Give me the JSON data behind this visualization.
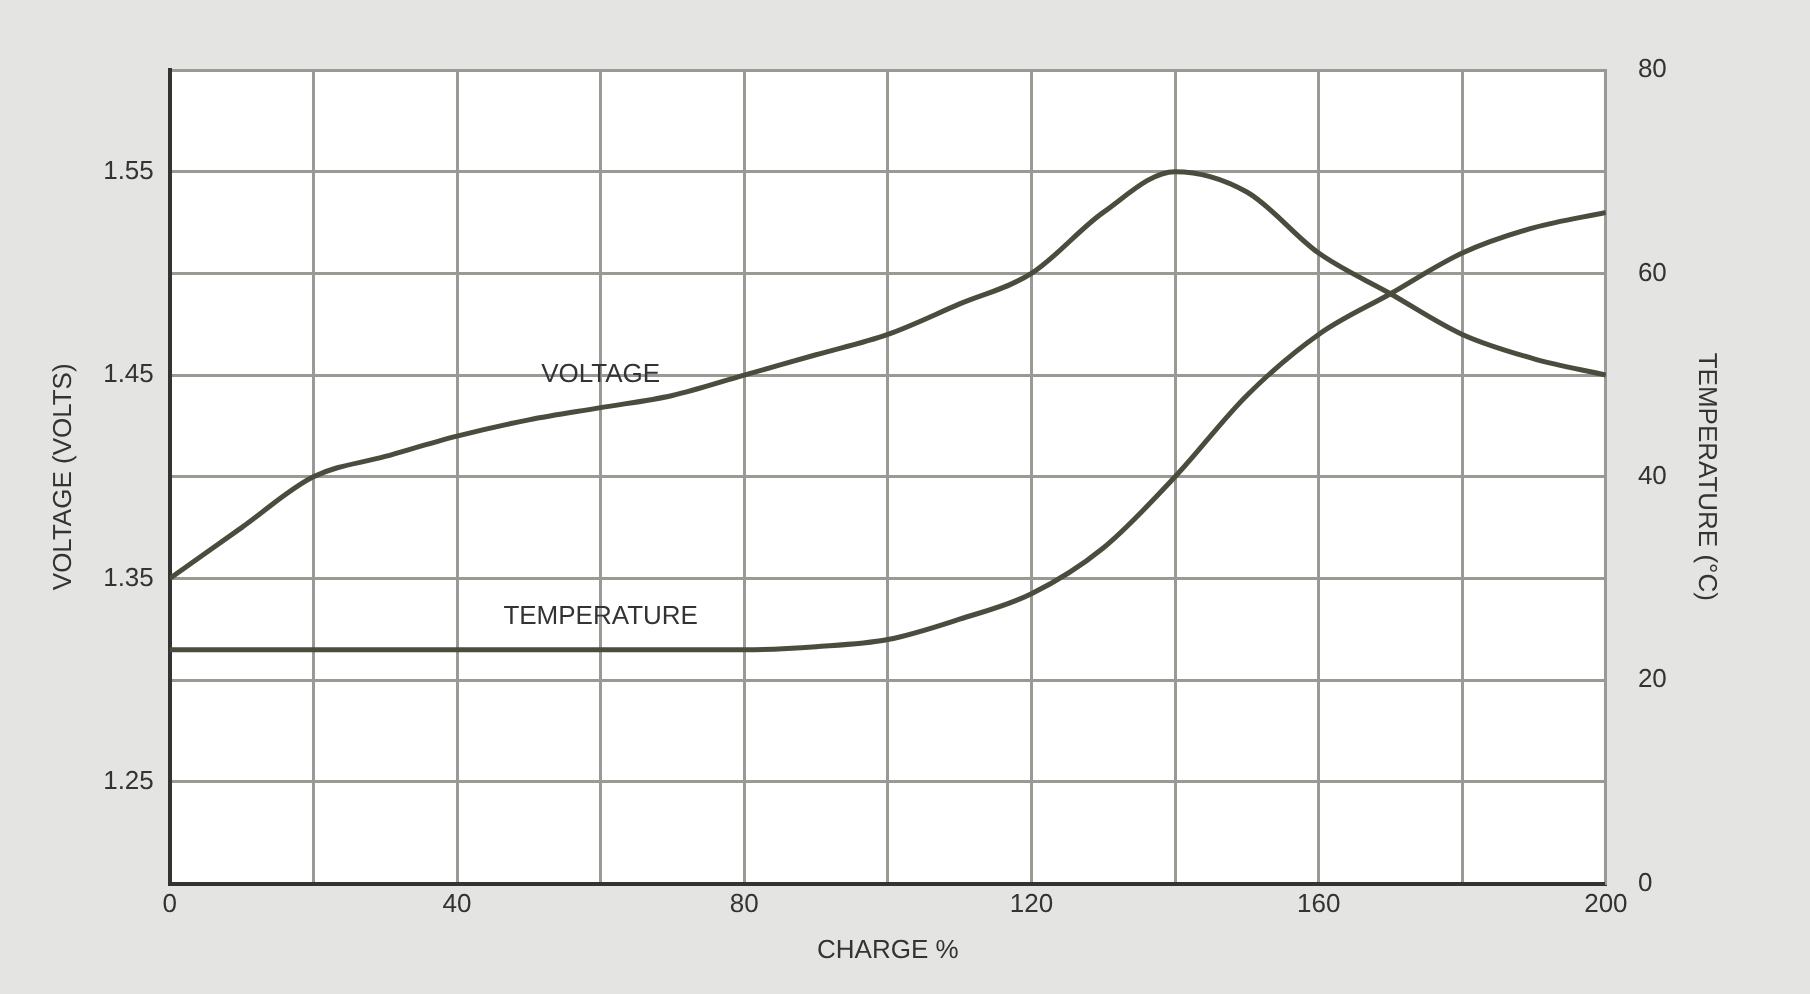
{
  "chart_data": {
    "type": "line",
    "xlabel": "CHARGE %",
    "ylabel": "VOLTAGE (VOLTS)",
    "y2label": "TEMPERATURE (°C)",
    "x": [
      0,
      10,
      20,
      30,
      40,
      50,
      60,
      70,
      80,
      90,
      100,
      110,
      120,
      130,
      140,
      150,
      160,
      170,
      180,
      190,
      200
    ],
    "series": [
      {
        "name": "VOLTAGE",
        "color": "#4a4d3e",
        "values": [
          1.35,
          1.375,
          1.4,
          1.41,
          1.42,
          1.428,
          1.434,
          1.44,
          1.45,
          1.46,
          1.47,
          1.485,
          1.5,
          1.53,
          1.55,
          1.54,
          1.51,
          1.49,
          1.47,
          1.458,
          1.45
        ]
      },
      {
        "name": "TEMPERATURE",
        "color": "#4a4d3e",
        "axis": "y2",
        "values": [
          23,
          23,
          23,
          23,
          23,
          23,
          23,
          23,
          23,
          23.3,
          24,
          26,
          28.5,
          33,
          40,
          48,
          54,
          58,
          62,
          64.5,
          66
        ]
      }
    ],
    "xlim": [
      0,
      200
    ],
    "xticks": [
      0,
      {
        "value": 20,
        "label": null
      },
      40,
      {
        "value": 60,
        "label": null
      },
      80,
      {
        "value": 100,
        "label": null
      },
      120,
      {
        "value": 140,
        "label": null
      },
      160,
      {
        "value": 180,
        "label": null
      },
      200
    ],
    "ylim": [
      1.2,
      1.6
    ],
    "yticks": [
      {
        "value": 1.2,
        "label": null
      },
      1.25,
      {
        "value": 1.3,
        "label": null
      },
      1.35,
      {
        "value": 1.4,
        "label": null
      },
      1.45,
      {
        "value": 1.5,
        "label": null
      },
      1.55,
      {
        "value": 1.6,
        "label": null
      }
    ],
    "y2lim": [
      0,
      80
    ],
    "y2ticks": [
      0,
      20,
      40,
      60,
      80
    ],
    "grid": true,
    "legend": false,
    "marker": "none",
    "line_style": "solid"
  }
}
